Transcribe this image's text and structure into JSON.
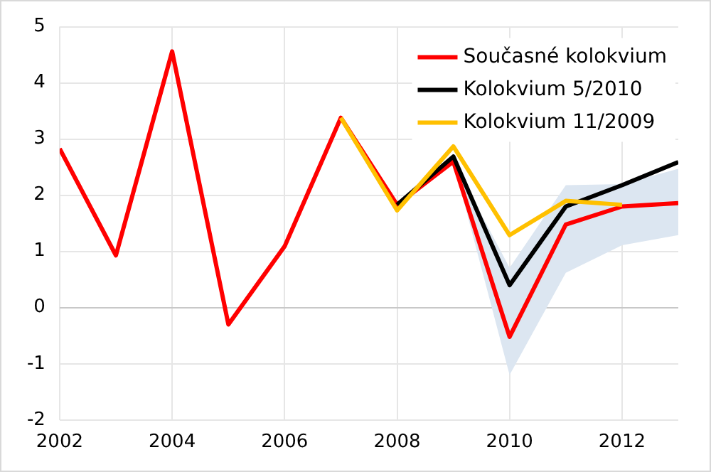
{
  "chart_data": {
    "type": "line",
    "x": [
      2002,
      2003,
      2004,
      2005,
      2006,
      2007,
      2008,
      2009,
      2010,
      2011,
      2012,
      2013
    ],
    "xlim": [
      2002,
      2013
    ],
    "xticks": [
      2002,
      2004,
      2006,
      2008,
      2010,
      2012
    ],
    "ylim": [
      -2,
      5
    ],
    "yticks": [
      -2,
      -1,
      0,
      1,
      2,
      3,
      4,
      5
    ],
    "grid": true,
    "legend": "top right",
    "marker": "none",
    "line_style": "solid",
    "series": [
      {
        "name": "Současné kolokvium",
        "color": "#ff0000",
        "values": [
          2.83,
          0.93,
          4.56,
          -0.3,
          1.09,
          3.38,
          1.83,
          2.6,
          -0.52,
          1.48,
          1.8,
          1.86
        ],
        "lower": [
          null,
          null,
          null,
          null,
          null,
          null,
          null,
          2.6,
          -1.2,
          0.62,
          1.11,
          1.29
        ],
        "upper": [
          null,
          null,
          null,
          null,
          null,
          null,
          null,
          2.6,
          0.71,
          2.18,
          2.2,
          2.47
        ]
      },
      {
        "name": "Kolokvium 5/2010",
        "color": "#000000",
        "values": [
          null,
          null,
          null,
          null,
          null,
          null,
          1.83,
          2.69,
          0.4,
          1.8,
          2.18,
          2.59
        ]
      },
      {
        "name": "Kolokvium 11/2009",
        "color": "#ffc000",
        "values": [
          null,
          null,
          null,
          null,
          null,
          3.38,
          1.73,
          2.87,
          1.29,
          1.9,
          1.83,
          null
        ]
      }
    ]
  }
}
